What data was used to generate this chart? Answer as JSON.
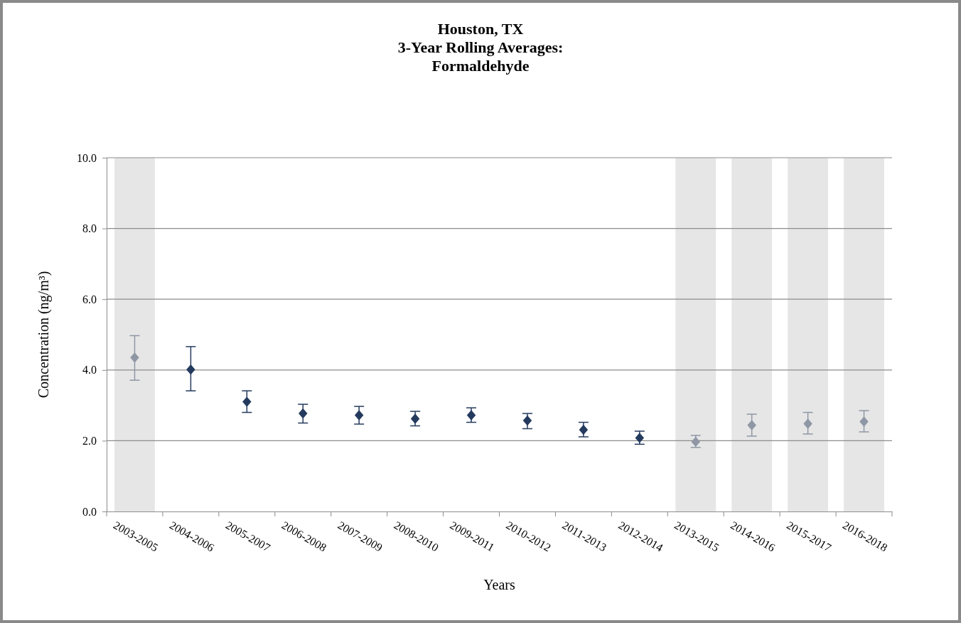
{
  "chart_data": {
    "type": "scatter",
    "title": "Houston, TX\n3-Year Rolling Averages:\nFormaldehyde",
    "xlabel": "Years",
    "ylabel": "Concentration (ng/m³)",
    "categories": [
      "2003-2005",
      "2004-2006",
      "2005-2007",
      "2006-2008",
      "2007-2009",
      "2008-2010",
      "2009-2011",
      "2010-2012",
      "2011-2013",
      "2012-2014",
      "2013-2015",
      "2014-2016",
      "2015-2017",
      "2016-2018"
    ],
    "series": [
      {
        "color": "#8f97a5",
        "values": [
          4.35,
          null,
          null,
          null,
          null,
          null,
          null,
          null,
          null,
          null,
          1.97,
          2.44,
          2.48,
          2.54
        ],
        "errors": [
          [
            3.71,
            4.97
          ],
          null,
          null,
          null,
          null,
          null,
          null,
          null,
          null,
          null,
          [
            1.81,
            2.15
          ],
          [
            2.13,
            2.75
          ],
          [
            2.19,
            2.8
          ],
          [
            2.25,
            2.85
          ]
        ]
      },
      {
        "color": "#243a5e",
        "values": [
          null,
          4.01,
          3.1,
          2.77,
          2.72,
          2.62,
          2.72,
          2.57,
          2.31,
          2.08,
          null,
          null,
          null,
          null
        ],
        "errors": [
          null,
          [
            3.41,
            4.66
          ],
          [
            2.8,
            3.41
          ],
          [
            2.5,
            3.03
          ],
          [
            2.47,
            2.97
          ],
          [
            2.42,
            2.83
          ],
          [
            2.52,
            2.93
          ],
          [
            2.34,
            2.77
          ],
          [
            2.11,
            2.52
          ],
          [
            1.9,
            2.27
          ],
          null,
          null,
          null,
          null
        ]
      }
    ],
    "bands": [
      {
        "axis": "x",
        "from": "2003-2005",
        "to": "2003-2005",
        "color": "#e6e6e6"
      },
      {
        "axis": "x",
        "from": "2013-2015",
        "to": "2013-2015",
        "color": "#e6e6e6"
      },
      {
        "axis": "x",
        "from": "2014-2016",
        "to": "2014-2016",
        "color": "#e6e6e6"
      },
      {
        "axis": "x",
        "from": "2015-2017",
        "to": "2015-2017",
        "color": "#e6e6e6"
      },
      {
        "axis": "x",
        "from": "2016-2018",
        "to": "2016-2018",
        "color": "#e6e6e6"
      }
    ],
    "ylim": [
      0,
      10
    ],
    "yticks": [
      {
        "value": 0,
        "label": "0.0"
      },
      {
        "value": 2,
        "label": "2.0"
      },
      {
        "value": 4,
        "label": "4.0"
      },
      {
        "value": 6,
        "label": "6.0"
      },
      {
        "value": 8,
        "label": "8.0"
      },
      {
        "value": 10,
        "label": "10.0"
      }
    ],
    "grid": "y",
    "marker": "diamond"
  }
}
